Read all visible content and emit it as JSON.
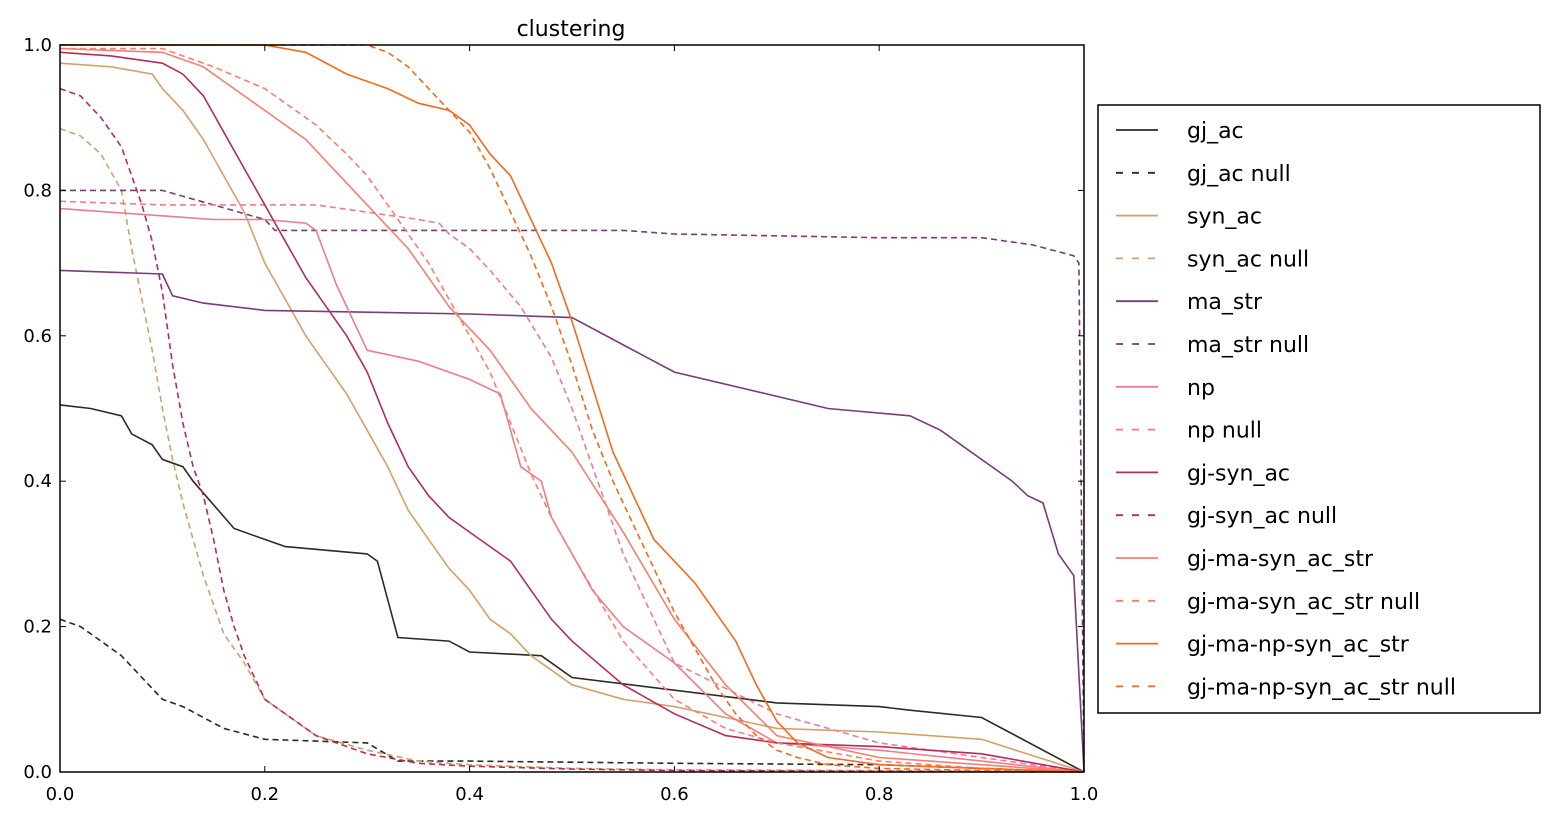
{
  "chart_data": {
    "type": "line",
    "title": "clustering",
    "xlabel": "",
    "ylabel": "",
    "xlim": [
      0.0,
      1.0
    ],
    "ylim": [
      0.0,
      1.0
    ],
    "x_ticks": [
      "0.0",
      "0.2",
      "0.4",
      "0.6",
      "0.8",
      "1.0"
    ],
    "y_ticks": [
      "0.0",
      "0.2",
      "0.4",
      "0.6",
      "0.8",
      "1.0"
    ],
    "grid": false,
    "legend_position": "right",
    "series": [
      {
        "name": "gj_ac",
        "color": "#2b2b24",
        "dash": "solid",
        "x": [
          0,
          0.03,
          0.06,
          0.07,
          0.09,
          0.1,
          0.12,
          0.13,
          0.17,
          0.2,
          0.22,
          0.3,
          0.31,
          0.33,
          0.38,
          0.4,
          0.47,
          0.5,
          0.7,
          0.8,
          0.83,
          0.9,
          1.0
        ],
        "y": [
          0.505,
          0.5,
          0.49,
          0.465,
          0.45,
          0.43,
          0.42,
          0.4,
          0.335,
          0.32,
          0.31,
          0.3,
          0.29,
          0.185,
          0.18,
          0.165,
          0.16,
          0.13,
          0.095,
          0.09,
          0.085,
          0.075,
          0.0
        ]
      },
      {
        "name": "gj_ac null",
        "color": "#2b2b24",
        "dash": "dashed",
        "x": [
          0,
          0.02,
          0.04,
          0.06,
          0.08,
          0.1,
          0.12,
          0.16,
          0.2,
          0.3,
          0.33,
          0.4,
          0.6,
          0.8,
          0.9,
          1.0
        ],
        "y": [
          0.21,
          0.2,
          0.18,
          0.16,
          0.13,
          0.1,
          0.09,
          0.06,
          0.045,
          0.04,
          0.015,
          0.015,
          0.012,
          0.01,
          0.005,
          0.0
        ]
      },
      {
        "name": "syn_ac",
        "color": "#d4a06a",
        "dash": "solid",
        "x": [
          0,
          0.05,
          0.09,
          0.1,
          0.12,
          0.14,
          0.16,
          0.18,
          0.2,
          0.22,
          0.24,
          0.26,
          0.28,
          0.3,
          0.32,
          0.34,
          0.36,
          0.38,
          0.4,
          0.42,
          0.44,
          0.46,
          0.48,
          0.5,
          0.55,
          0.6,
          0.7,
          0.8,
          0.9,
          1.0
        ],
        "y": [
          0.975,
          0.97,
          0.96,
          0.94,
          0.91,
          0.87,
          0.82,
          0.77,
          0.7,
          0.65,
          0.6,
          0.56,
          0.52,
          0.47,
          0.42,
          0.36,
          0.32,
          0.28,
          0.25,
          0.21,
          0.19,
          0.16,
          0.14,
          0.12,
          0.1,
          0.09,
          0.06,
          0.055,
          0.045,
          0.0
        ]
      },
      {
        "name": "syn_ac null",
        "color": "#d4a06a",
        "dash": "dashed",
        "x": [
          0,
          0.02,
          0.04,
          0.06,
          0.07,
          0.08,
          0.09,
          0.1,
          0.11,
          0.12,
          0.13,
          0.14,
          0.15,
          0.16,
          0.18,
          0.2,
          0.25,
          0.3,
          0.35,
          0.4,
          0.5,
          0.6,
          0.8,
          1.0
        ],
        "y": [
          0.885,
          0.875,
          0.85,
          0.8,
          0.72,
          0.65,
          0.58,
          0.5,
          0.43,
          0.37,
          0.32,
          0.27,
          0.23,
          0.19,
          0.15,
          0.1,
          0.05,
          0.03,
          0.015,
          0.01,
          0.005,
          0.003,
          0.002,
          0.0
        ]
      },
      {
        "name": "ma_str",
        "color": "#7b3a7a",
        "dash": "solid",
        "x": [
          0,
          0.1,
          0.11,
          0.14,
          0.2,
          0.4,
          0.5,
          0.6,
          0.75,
          0.83,
          0.86,
          0.93,
          0.945,
          0.96,
          0.975,
          0.99,
          1.0
        ],
        "y": [
          0.69,
          0.685,
          0.655,
          0.645,
          0.635,
          0.63,
          0.625,
          0.55,
          0.5,
          0.49,
          0.47,
          0.4,
          0.38,
          0.37,
          0.3,
          0.27,
          0.0
        ]
      },
      {
        "name": "ma_str null",
        "color": "#7b3a7a",
        "dash": "dashed",
        "x": [
          0,
          0.1,
          0.2,
          0.21,
          0.5,
          0.55,
          0.6,
          0.8,
          0.9,
          0.95,
          0.99,
          0.995,
          1.0
        ],
        "y": [
          0.8,
          0.8,
          0.76,
          0.745,
          0.745,
          0.745,
          0.74,
          0.735,
          0.735,
          0.725,
          0.71,
          0.7,
          0.0
        ]
      },
      {
        "name": "np",
        "color": "#ef7b8f",
        "dash": "solid",
        "x": [
          0,
          0.05,
          0.1,
          0.15,
          0.2,
          0.24,
          0.25,
          0.27,
          0.3,
          0.35,
          0.38,
          0.4,
          0.43,
          0.44,
          0.45,
          0.47,
          0.48,
          0.5,
          0.52,
          0.55,
          0.58,
          0.6,
          0.65,
          0.7,
          0.8,
          0.9,
          1.0
        ],
        "y": [
          0.775,
          0.77,
          0.765,
          0.76,
          0.76,
          0.755,
          0.745,
          0.67,
          0.58,
          0.565,
          0.55,
          0.54,
          0.52,
          0.47,
          0.42,
          0.4,
          0.35,
          0.3,
          0.25,
          0.2,
          0.17,
          0.15,
          0.08,
          0.04,
          0.03,
          0.015,
          0.0
        ]
      },
      {
        "name": "np null",
        "color": "#ef7b8f",
        "dash": "dashed",
        "x": [
          0,
          0.1,
          0.2,
          0.25,
          0.3,
          0.35,
          0.37,
          0.38,
          0.4,
          0.42,
          0.45,
          0.48,
          0.5,
          0.55,
          0.6,
          0.7,
          0.8,
          0.9,
          0.95,
          1.0
        ],
        "y": [
          0.785,
          0.78,
          0.78,
          0.78,
          0.77,
          0.76,
          0.755,
          0.74,
          0.72,
          0.69,
          0.64,
          0.57,
          0.5,
          0.3,
          0.15,
          0.08,
          0.04,
          0.02,
          0.01,
          0.0
        ]
      },
      {
        "name": "gj-syn_ac",
        "color": "#b52b5b",
        "dash": "solid",
        "x": [
          0,
          0.05,
          0.1,
          0.12,
          0.14,
          0.16,
          0.18,
          0.2,
          0.22,
          0.24,
          0.26,
          0.28,
          0.3,
          0.32,
          0.34,
          0.36,
          0.38,
          0.4,
          0.42,
          0.44,
          0.46,
          0.48,
          0.5,
          0.55,
          0.6,
          0.65,
          0.7,
          0.8,
          0.9,
          1.0
        ],
        "y": [
          0.99,
          0.985,
          0.975,
          0.96,
          0.93,
          0.88,
          0.83,
          0.78,
          0.73,
          0.68,
          0.64,
          0.6,
          0.55,
          0.48,
          0.42,
          0.38,
          0.35,
          0.33,
          0.31,
          0.29,
          0.25,
          0.21,
          0.18,
          0.12,
          0.08,
          0.05,
          0.04,
          0.035,
          0.025,
          0.0
        ]
      },
      {
        "name": "gj-syn_ac null",
        "color": "#b52b5b",
        "dash": "dashed",
        "x": [
          0,
          0.02,
          0.04,
          0.06,
          0.07,
          0.08,
          0.09,
          0.1,
          0.11,
          0.12,
          0.13,
          0.14,
          0.15,
          0.16,
          0.17,
          0.18,
          0.2,
          0.25,
          0.3,
          0.35,
          0.4,
          0.5,
          0.6,
          0.8,
          1.0
        ],
        "y": [
          0.94,
          0.93,
          0.9,
          0.86,
          0.82,
          0.78,
          0.73,
          0.66,
          0.56,
          0.48,
          0.42,
          0.38,
          0.32,
          0.25,
          0.2,
          0.16,
          0.1,
          0.05,
          0.025,
          0.012,
          0.008,
          0.004,
          0.002,
          0.001,
          0.0
        ]
      },
      {
        "name": "gj-ma-syn_ac_str",
        "color": "#f47f6e",
        "dash": "solid",
        "x": [
          0,
          0.1,
          0.14,
          0.16,
          0.18,
          0.2,
          0.22,
          0.24,
          0.26,
          0.28,
          0.3,
          0.32,
          0.34,
          0.36,
          0.38,
          0.4,
          0.42,
          0.44,
          0.46,
          0.48,
          0.5,
          0.55,
          0.6,
          0.65,
          0.7,
          0.8,
          0.9,
          1.0
        ],
        "y": [
          0.995,
          0.99,
          0.97,
          0.95,
          0.93,
          0.91,
          0.89,
          0.87,
          0.84,
          0.81,
          0.78,
          0.75,
          0.72,
          0.68,
          0.64,
          0.61,
          0.58,
          0.54,
          0.5,
          0.47,
          0.44,
          0.33,
          0.21,
          0.12,
          0.05,
          0.02,
          0.01,
          0.0
        ]
      },
      {
        "name": "gj-ma-syn_ac_str null",
        "color": "#fa7e6e",
        "dash": "dashed",
        "x": [
          0,
          0.1,
          0.13,
          0.15,
          0.2,
          0.25,
          0.28,
          0.3,
          0.32,
          0.34,
          0.36,
          0.38,
          0.4,
          0.42,
          0.44,
          0.46,
          0.48,
          0.5,
          0.55,
          0.6,
          0.65,
          0.7,
          0.8,
          0.9,
          1.0
        ],
        "y": [
          0.995,
          0.995,
          0.98,
          0.97,
          0.94,
          0.89,
          0.85,
          0.82,
          0.78,
          0.74,
          0.7,
          0.65,
          0.6,
          0.55,
          0.48,
          0.41,
          0.35,
          0.3,
          0.18,
          0.1,
          0.06,
          0.04,
          0.015,
          0.005,
          0.0
        ]
      },
      {
        "name": "gj-ma-np-syn_ac_str",
        "color": "#f26a1a",
        "dash": "solid",
        "x": [
          0,
          0.2,
          0.24,
          0.28,
          0.32,
          0.35,
          0.38,
          0.4,
          0.42,
          0.44,
          0.46,
          0.48,
          0.5,
          0.52,
          0.54,
          0.56,
          0.58,
          0.6,
          0.62,
          0.64,
          0.66,
          0.68,
          0.7,
          0.72,
          0.75,
          0.8,
          0.9,
          1.0
        ],
        "y": [
          1.0,
          1.0,
          0.99,
          0.96,
          0.94,
          0.92,
          0.91,
          0.89,
          0.85,
          0.82,
          0.76,
          0.7,
          0.62,
          0.53,
          0.44,
          0.38,
          0.32,
          0.29,
          0.26,
          0.22,
          0.18,
          0.12,
          0.07,
          0.04,
          0.02,
          0.01,
          0.005,
          0.0
        ]
      },
      {
        "name": "gj-ma-np-syn_ac_str null",
        "color": "#f26a1a",
        "dash": "dashed",
        "x": [
          0,
          0.2,
          0.28,
          0.3,
          0.32,
          0.34,
          0.36,
          0.38,
          0.4,
          0.42,
          0.44,
          0.46,
          0.48,
          0.5,
          0.52,
          0.54,
          0.56,
          0.58,
          0.6,
          0.62,
          0.64,
          0.66,
          0.68,
          0.7,
          0.72,
          0.75,
          0.8,
          0.9,
          1.0
        ],
        "y": [
          1.0,
          1.0,
          1.0,
          1.0,
          0.99,
          0.97,
          0.94,
          0.91,
          0.88,
          0.83,
          0.77,
          0.71,
          0.64,
          0.56,
          0.47,
          0.4,
          0.34,
          0.28,
          0.22,
          0.17,
          0.12,
          0.08,
          0.05,
          0.03,
          0.02,
          0.01,
          0.005,
          0.002,
          0.0
        ]
      }
    ]
  }
}
